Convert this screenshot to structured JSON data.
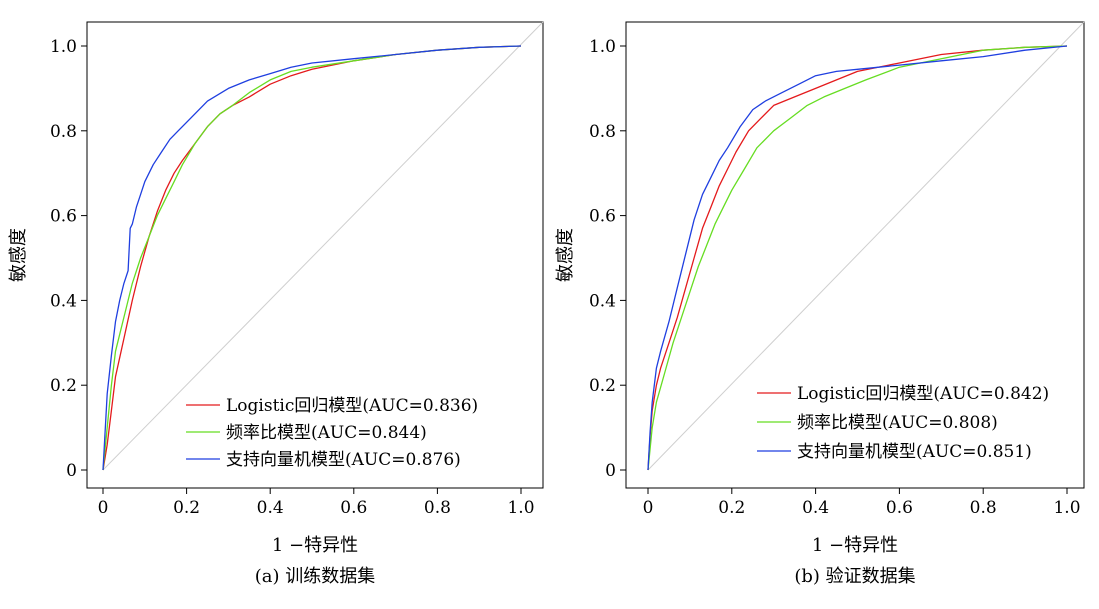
{
  "chart_data": [
    {
      "type": "line",
      "caption": "(a) 训练数据集",
      "xlabel": "1 −特异性",
      "ylabel": "敏感度",
      "xlim": [
        0,
        1
      ],
      "ylim": [
        0,
        1
      ],
      "xticks": [
        "0",
        "0.2",
        "0.4",
        "0.6",
        "0.8",
        "1.0"
      ],
      "yticks": [
        "0",
        "0.2",
        "0.4",
        "0.6",
        "0.8",
        "1.0"
      ],
      "legend_position": "bottom-right",
      "reference_line": true,
      "series": [
        {
          "name": "Logistic回归模型(AUC=0.836)",
          "color": "#e41a1c",
          "x": [
            0.0,
            0.01,
            0.02,
            0.03,
            0.05,
            0.07,
            0.09,
            0.11,
            0.13,
            0.15,
            0.17,
            0.19,
            0.22,
            0.25,
            0.28,
            0.31,
            0.35,
            0.4,
            0.45,
            0.5,
            0.6,
            0.7,
            0.8,
            0.9,
            1.0
          ],
          "y": [
            0.0,
            0.06,
            0.14,
            0.22,
            0.31,
            0.4,
            0.48,
            0.55,
            0.61,
            0.66,
            0.7,
            0.73,
            0.77,
            0.81,
            0.84,
            0.86,
            0.88,
            0.91,
            0.93,
            0.945,
            0.965,
            0.98,
            0.99,
            0.997,
            1.0
          ]
        },
        {
          "name": "频率比模型(AUC=0.844)",
          "color": "#66dd22",
          "x": [
            0.0,
            0.01,
            0.02,
            0.03,
            0.05,
            0.07,
            0.09,
            0.11,
            0.13,
            0.15,
            0.17,
            0.19,
            0.22,
            0.25,
            0.28,
            0.31,
            0.35,
            0.4,
            0.45,
            0.5,
            0.6,
            0.7,
            0.8,
            0.9,
            1.0
          ],
          "y": [
            0.0,
            0.1,
            0.2,
            0.28,
            0.36,
            0.44,
            0.5,
            0.55,
            0.6,
            0.64,
            0.68,
            0.72,
            0.77,
            0.81,
            0.84,
            0.86,
            0.89,
            0.92,
            0.94,
            0.95,
            0.965,
            0.98,
            0.99,
            0.997,
            1.0
          ]
        },
        {
          "name": "支持向量机模型(AUC=0.876)",
          "color": "#1f3fe0",
          "x": [
            0.0,
            0.01,
            0.02,
            0.03,
            0.04,
            0.05,
            0.06,
            0.065,
            0.07,
            0.08,
            0.09,
            0.1,
            0.12,
            0.14,
            0.16,
            0.18,
            0.21,
            0.25,
            0.3,
            0.35,
            0.4,
            0.45,
            0.5,
            0.6,
            0.7,
            0.8,
            0.9,
            1.0
          ],
          "y": [
            0.0,
            0.18,
            0.27,
            0.35,
            0.4,
            0.44,
            0.47,
            0.57,
            0.58,
            0.62,
            0.65,
            0.68,
            0.72,
            0.75,
            0.78,
            0.8,
            0.83,
            0.87,
            0.9,
            0.92,
            0.935,
            0.95,
            0.96,
            0.97,
            0.98,
            0.99,
            0.997,
            1.0
          ]
        }
      ]
    },
    {
      "type": "line",
      "caption": "(b) 验证数据集",
      "xlabel": "1 −特异性",
      "ylabel": "敏感度",
      "xlim": [
        0,
        1
      ],
      "ylim": [
        0,
        1
      ],
      "xticks": [
        "0",
        "0.2",
        "0.4",
        "0.6",
        "0.8",
        "1.0"
      ],
      "yticks": [
        "0",
        "0.2",
        "0.4",
        "0.6",
        "0.8",
        "1.0"
      ],
      "legend_position": "bottom-right",
      "reference_line": true,
      "series": [
        {
          "name": "Logistic回归模型(AUC=0.842)",
          "color": "#e41a1c",
          "x": [
            0.0,
            0.005,
            0.01,
            0.02,
            0.03,
            0.05,
            0.07,
            0.09,
            0.11,
            0.13,
            0.15,
            0.17,
            0.19,
            0.21,
            0.24,
            0.27,
            0.3,
            0.35,
            0.4,
            0.45,
            0.5,
            0.6,
            0.7,
            0.8,
            0.9,
            1.0
          ],
          "y": [
            0.0,
            0.08,
            0.14,
            0.2,
            0.24,
            0.3,
            0.36,
            0.43,
            0.5,
            0.57,
            0.62,
            0.67,
            0.71,
            0.75,
            0.8,
            0.83,
            0.86,
            0.88,
            0.9,
            0.92,
            0.94,
            0.96,
            0.98,
            0.99,
            0.997,
            1.0
          ]
        },
        {
          "name": "频率比模型(AUC=0.808)",
          "color": "#66dd22",
          "x": [
            0.0,
            0.005,
            0.01,
            0.02,
            0.04,
            0.06,
            0.08,
            0.1,
            0.12,
            0.14,
            0.16,
            0.18,
            0.2,
            0.23,
            0.26,
            0.3,
            0.34,
            0.38,
            0.42,
            0.47,
            0.52,
            0.6,
            0.7,
            0.8,
            0.9,
            1.0
          ],
          "y": [
            0.0,
            0.05,
            0.1,
            0.16,
            0.23,
            0.3,
            0.36,
            0.42,
            0.48,
            0.53,
            0.58,
            0.62,
            0.66,
            0.71,
            0.76,
            0.8,
            0.83,
            0.86,
            0.88,
            0.9,
            0.92,
            0.95,
            0.97,
            0.99,
            0.997,
            1.0
          ]
        },
        {
          "name": "支持向量机模型(AUC=0.851)",
          "color": "#1f3fe0",
          "x": [
            0.0,
            0.005,
            0.01,
            0.02,
            0.03,
            0.05,
            0.07,
            0.09,
            0.11,
            0.13,
            0.15,
            0.17,
            0.19,
            0.22,
            0.25,
            0.28,
            0.32,
            0.36,
            0.4,
            0.45,
            0.5,
            0.6,
            0.7,
            0.8,
            0.9,
            1.0
          ],
          "y": [
            0.0,
            0.09,
            0.16,
            0.24,
            0.28,
            0.35,
            0.43,
            0.51,
            0.59,
            0.65,
            0.69,
            0.73,
            0.76,
            0.81,
            0.85,
            0.87,
            0.89,
            0.91,
            0.93,
            0.94,
            0.945,
            0.955,
            0.965,
            0.975,
            0.99,
            1.0
          ]
        }
      ]
    }
  ]
}
